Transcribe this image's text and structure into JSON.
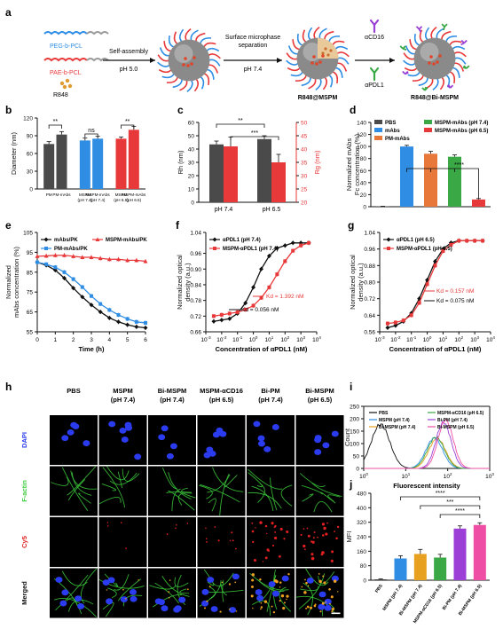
{
  "panel_a": {
    "letter": "a",
    "peg_label": "PEG-b-PCL",
    "pae_label": "PAE-b-PCL",
    "drug": "R848",
    "step1_top": "Self-assembly",
    "step1_bottom": "pH 5.0",
    "step2_top_1": "Surface microphase",
    "step2_top_2": "separation",
    "step2_bottom": "pH 7.4",
    "product1": "R848@MSPM",
    "ab1": "αCD16",
    "ab2": "αPDL1",
    "product2": "R848@Bi-MSPM"
  },
  "colors": {
    "blue": "#2f8de4",
    "red": "#e8393a",
    "dark": "#4a4a4a",
    "green": "#3aa845",
    "orange": "#e8783a",
    "violet": "#9b3fd6",
    "purple": "#ee4fa5",
    "black": "#111111"
  },
  "chart_data": [
    {
      "id": "b",
      "type": "bar",
      "letter": "b",
      "ylabel": "Diameter (nm)",
      "ylim": [
        0,
        120
      ],
      "yticks": [
        0,
        30,
        60,
        90,
        120
      ],
      "categories": [
        "PM",
        "PM-mAbs",
        "MSPM (pH 7.4)",
        "MSPM-mAbs (pH 7.4)",
        "MSPM (pH 6.5)",
        "MSPM-mAbs (pH 6.5)"
      ],
      "tick_lines": [
        [
          "PM"
        ],
        [
          "PM-mAbs"
        ],
        [
          "MSPM",
          "(pH 7.4)"
        ],
        [
          "MSPM-mAbs",
          "(pH 7.4)"
        ],
        [
          "MSPM",
          "(pH 6.5)"
        ],
        [
          "MSPM-mAbs",
          "(pH 6.5)"
        ]
      ],
      "values": [
        76,
        92,
        82,
        85,
        85,
        100
      ],
      "errors": [
        4,
        5,
        4,
        4,
        3,
        6
      ],
      "colors": [
        "#4a4a4a",
        "#4a4a4a",
        "#2f8de4",
        "#2f8de4",
        "#e8393a",
        "#e8393a"
      ],
      "significance": [
        [
          "**"
        ],
        [
          "ns"
        ],
        [
          "**"
        ]
      ]
    },
    {
      "id": "c",
      "type": "bar",
      "letter": "c",
      "ylabel": "Rh (nm)",
      "y2label": "Rg (nm)",
      "ylim": [
        0,
        60
      ],
      "yticks": [
        0,
        10,
        20,
        30,
        40,
        50,
        60
      ],
      "y2lim": [
        20,
        50
      ],
      "y2ticks": [
        20,
        25,
        30,
        35,
        40,
        45,
        50
      ],
      "categories": [
        "pH 7.4",
        "pH 6.5"
      ],
      "series": [
        {
          "name": "Rh",
          "values": [
            43.5,
            47.5
          ],
          "errors": [
            2.5,
            2.5
          ],
          "color": "#4a4a4a"
        },
        {
          "name": "Rg",
          "values": [
            41,
            35
          ],
          "errors": [
            3.5,
            3
          ],
          "color": "#e8393a"
        }
      ],
      "significance": [
        "**",
        "***"
      ]
    },
    {
      "id": "d",
      "type": "bar",
      "letter": "d",
      "ylabel_1": "Normalized mAbs",
      "ylabel_2": "Fc concentration (%)",
      "ylim": [
        0,
        140
      ],
      "yticks": [
        0,
        20,
        40,
        60,
        80,
        100,
        120,
        140
      ],
      "categories": [
        "PBS",
        "mAbs",
        "PM-mAbs",
        "MSPM-mAbs (pH 7.4)",
        "MSPM-mAbs (pH 6.5)"
      ],
      "values": [
        0.5,
        100,
        88,
        83,
        12
      ],
      "errors": [
        0.3,
        2,
        4,
        3,
        1.5
      ],
      "colors": [
        "#4a4a4a",
        "#2f8de4",
        "#e8783a",
        "#3aa845",
        "#e8393a"
      ],
      "legend": [
        "PBS",
        "mAbs",
        "PM-mAbs",
        "MSPM-mAbs (pH 7.4)",
        "MSPM-mAbs (pH 6.5)"
      ],
      "significance": "****"
    },
    {
      "id": "e",
      "type": "line",
      "letter": "e",
      "xlabel": "Time (h)",
      "ylabel_1": "Normalized",
      "ylabel_2": "mAbs concentration (%)",
      "xlim": [
        0,
        6
      ],
      "xticks": [
        0,
        1,
        2,
        3,
        4,
        5,
        6
      ],
      "ylim": [
        55,
        105
      ],
      "yticks": [
        55,
        65,
        75,
        85,
        95,
        105
      ],
      "series": [
        {
          "name": "mAbs/PK",
          "color": "#111111",
          "x": [
            0,
            0.5,
            1,
            1.5,
            2,
            2.5,
            3,
            3.5,
            4,
            4.5,
            5,
            5.5,
            6
          ],
          "y": [
            90,
            88.5,
            86,
            82,
            77,
            72.5,
            68.5,
            65,
            62,
            60,
            58.5,
            57.5,
            57
          ]
        },
        {
          "name": "PM-mAbs/PK",
          "color": "#2f8de4",
          "x": [
            0,
            0.5,
            1,
            1.5,
            2,
            2.5,
            3,
            3.5,
            4,
            4.5,
            5,
            5.5,
            6
          ],
          "y": [
            90,
            89,
            87.5,
            85,
            81.5,
            77.5,
            73,
            69,
            66,
            63.5,
            61.5,
            60,
            59.5
          ]
        },
        {
          "name": "MSPM-mAbs/PK",
          "color": "#e8393a",
          "x": [
            0,
            0.5,
            1,
            1.5,
            2,
            2.5,
            3,
            3.5,
            4,
            4.5,
            5,
            5.5,
            6
          ],
          "y": [
            93,
            93.2,
            93.5,
            93.5,
            93,
            92.5,
            92.5,
            92,
            91.5,
            91.5,
            91,
            91,
            90.5
          ]
        }
      ],
      "legend": [
        "mAbs/PK",
        "PM-mAbs/PK",
        "MSPM-mAbs/PK"
      ]
    },
    {
      "id": "f",
      "type": "line",
      "letter": "f",
      "xlabel": "Concentration of αPDL1 (nM)",
      "ylabel_1": "Normalized optical",
      "ylabel_2": "density (a.u.)",
      "xlim": [
        -3,
        4
      ],
      "xticks": [
        -3,
        -2,
        -1,
        0,
        1,
        2,
        3,
        4
      ],
      "xscale": "log",
      "ylim": [
        0.66,
        1.04
      ],
      "yticks": [
        0.66,
        0.72,
        0.78,
        0.84,
        0.9,
        0.96,
        1.04
      ],
      "series": [
        {
          "name": "αPDL1 (pH 7.4)",
          "color": "#111111",
          "x": [
            -2.5,
            -2,
            -1.5,
            -1,
            -0.5,
            0,
            0.5,
            1,
            1.5,
            2,
            2.5,
            3,
            3.5
          ],
          "y": [
            0.7,
            0.705,
            0.71,
            0.73,
            0.77,
            0.83,
            0.9,
            0.95,
            0.98,
            0.99,
            1.0,
            1.0,
            1.0
          ]
        },
        {
          "name": "MSPM-αPDL1 (pH 7.4)",
          "color": "#e8393a",
          "x": [
            -2.5,
            -2,
            -1.5,
            -1,
            -0.5,
            0,
            0.5,
            1,
            1.5,
            2,
            2.5,
            3,
            3.5
          ],
          "y": [
            0.72,
            0.725,
            0.73,
            0.735,
            0.745,
            0.76,
            0.79,
            0.83,
            0.88,
            0.93,
            0.97,
            0.99,
            1.0
          ]
        }
      ],
      "legend": [
        "αPDL1 (pH 7.4)",
        "MSPM-αPDL1 (pH 7.4)"
      ],
      "annotations": [
        "Kd = 1.392 nM",
        "Kd = 0.056 nM"
      ]
    },
    {
      "id": "g",
      "type": "line",
      "letter": "g",
      "xlabel": "Concentration of αPDL1 (nM)",
      "ylabel_1": "Normalized optical",
      "ylabel_2": "density (a.u.)",
      "xlim": [
        -3,
        4
      ],
      "xticks": [
        -3,
        -2,
        -1,
        0,
        1,
        2,
        3,
        4
      ],
      "xscale": "log",
      "ylim": [
        0.56,
        1.04
      ],
      "yticks": [
        0.56,
        0.64,
        0.72,
        0.8,
        0.88,
        0.96,
        1.04
      ],
      "series": [
        {
          "name": "αPDL1 (pH 6.5)",
          "color": "#111111",
          "x": [
            -2.5,
            -2,
            -1.5,
            -1,
            -0.5,
            0,
            0.5,
            1,
            1.5,
            2,
            2.5,
            3,
            3.5
          ],
          "y": [
            0.58,
            0.59,
            0.61,
            0.65,
            0.72,
            0.81,
            0.9,
            0.96,
            0.99,
            1.0,
            1.0,
            1.0,
            1.0
          ]
        },
        {
          "name": "MSPM-αPDL1 (pH 6.5)",
          "color": "#e8393a",
          "x": [
            -2.5,
            -2,
            -1.5,
            -1,
            -0.5,
            0,
            0.5,
            1,
            1.5,
            2,
            2.5,
            3,
            3.5
          ],
          "y": [
            0.6,
            0.605,
            0.615,
            0.64,
            0.7,
            0.79,
            0.88,
            0.95,
            0.98,
            1.0,
            1.0,
            1.0,
            1.0
          ]
        }
      ],
      "legend": [
        "αPDL1 (pH 6.5)",
        "MSPM-αPDL1 (pH 6.5)"
      ],
      "annotations": [
        "Kd = 0.157 nM",
        "Kd = 0.075 nM"
      ]
    },
    {
      "id": "i",
      "type": "line",
      "letter": "i",
      "xlabel": "Fluorescent intensity",
      "ylabel": "Count",
      "xlim": [
        0,
        3
      ],
      "xscale": "log",
      "xticks": [
        0,
        1,
        2,
        3
      ],
      "ylim": [
        0,
        250
      ],
      "yticks": [
        0,
        50,
        100,
        150,
        200,
        250
      ],
      "series": [
        {
          "name": "PBS",
          "color": "#111111",
          "peak": 0.4,
          "height": 178,
          "width": 0.22
        },
        {
          "name": "MSPM (pH 7.4)",
          "color": "#2f8de4",
          "peak": 1.68,
          "height": 122,
          "width": 0.2
        },
        {
          "name": "Bi-MSPM (pH 7.4)",
          "color": "#e8a020",
          "peak": 1.75,
          "height": 120,
          "width": 0.2
        },
        {
          "name": "MSPM-αCD16 (pH 6.5)",
          "color": "#3aa845",
          "peak": 1.72,
          "height": 126,
          "width": 0.2
        },
        {
          "name": "Bi-PM (pH 7.4)",
          "color": "#9b3fd6",
          "peak": 1.9,
          "height": 185,
          "width": 0.18
        },
        {
          "name": "Bi-MSPM (pH 6.5)",
          "color": "#ee4fa5",
          "peak": 1.95,
          "height": 195,
          "width": 0.18
        }
      ],
      "legend": [
        "PBS",
        "MSPM (pH 7.4)",
        "Bi-MSPM (pH 7.4)",
        "MSPM-αCD16 (pH 6.5)",
        "Bi-PM (pH 7.4)",
        "Bi-MSPM (pH 6.5)"
      ]
    },
    {
      "id": "j",
      "type": "bar",
      "letter": "j",
      "ylabel": "MFI",
      "ylim": [
        0,
        480
      ],
      "yticks": [
        0,
        80,
        160,
        240,
        320,
        400,
        480
      ],
      "categories": [
        "PBS",
        "MSPM (pH 7.4)",
        "Bi-MSPM (pH 7.4)",
        "MSPM-αCD16 (pH 6.5)",
        "Bi-PM (pH 7.4)",
        "Bi-MSPM (pH 6.5)"
      ],
      "values": [
        5,
        120,
        145,
        125,
        285,
        305
      ],
      "errors": [
        2,
        15,
        25,
        18,
        15,
        12
      ],
      "colors": [
        "#4a4a4a",
        "#2f8de4",
        "#e8a020",
        "#3aa845",
        "#9b3fd6",
        "#ee4fa5"
      ],
      "significance": [
        "****",
        "***",
        "****"
      ]
    }
  ],
  "panel_h": {
    "letter": "h",
    "columns": [
      [
        "PBS"
      ],
      [
        "MSPM",
        "(pH 7.4)"
      ],
      [
        "Bi-MSPM",
        "(pH 7.4)"
      ],
      [
        "MSPM-αCD16",
        "(pH 6.5)"
      ],
      [
        "Bi-PM",
        "(pH 7.4)"
      ],
      [
        "Bi-MSPM",
        "(pH 6.5)"
      ]
    ],
    "rows": [
      "DAPI",
      "F-actin",
      "Cy5",
      "Merged"
    ],
    "row_colors": [
      "#2b3cf0",
      "#3ccc3c",
      "#e02020",
      "#111111"
    ],
    "cy5_levels": [
      0,
      0.15,
      0.15,
      0.35,
      0.9,
      0.95
    ]
  }
}
